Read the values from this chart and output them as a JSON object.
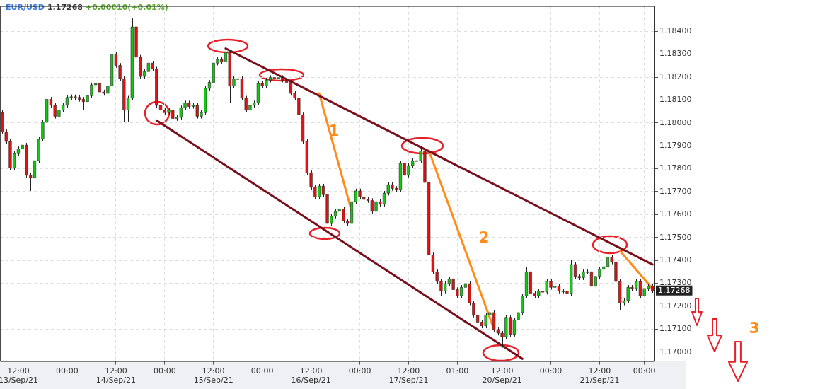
{
  "chart_data": {
    "type": "candlestick",
    "title": "EUR/USD",
    "subtitle": "1.17268",
    "annotations": [
      "+0.00010(+0.01%)",
      "1",
      "2",
      "3",
      "1.17268"
    ],
    "categories": [
      null,
      null,
      null,
      null,
      "12:00\n13/Sep/21",
      null,
      null,
      null,
      null,
      null,
      null,
      null,
      null,
      null,
      null,
      null,
      "00:00",
      null,
      null,
      null,
      null,
      null,
      null,
      null,
      null,
      null,
      null,
      null,
      "12:00\n14/Sep/21",
      null,
      null,
      null,
      null,
      null,
      null,
      null,
      null,
      null,
      null,
      null,
      "00:00",
      null,
      null,
      null,
      null,
      null,
      null,
      null,
      null,
      null,
      null,
      null,
      "12:00\n15/Sep/21",
      null,
      null,
      null,
      null,
      null,
      null,
      null,
      null,
      null,
      null,
      null,
      "00:00",
      null,
      null,
      null,
      null,
      null,
      null,
      null,
      null,
      null,
      null,
      null,
      "12:00\n16/Sep/21",
      null,
      null,
      null,
      null,
      null,
      null,
      null,
      null,
      null,
      null,
      null,
      "00:00",
      null,
      null,
      null,
      null,
      null,
      null,
      null,
      null,
      null,
      null,
      null,
      "12:00\n17/Sep/21",
      null,
      null,
      null,
      null,
      null,
      null,
      null,
      null,
      null,
      null,
      null,
      "01:00",
      null,
      null,
      null,
      null,
      null,
      null,
      null,
      null,
      null,
      null,
      "12:00\n20/Sep/21",
      null,
      null,
      null,
      null,
      null,
      null,
      null,
      null,
      null,
      null,
      null,
      "00:00",
      null,
      null,
      null,
      null,
      null,
      null,
      null,
      null,
      null,
      null,
      null,
      "12:00\n21/Sep/21",
      null,
      null,
      null,
      null,
      null,
      null,
      null,
      null,
      null,
      null,
      "00:00",
      null,
      null
    ],
    "ohlc": [
      [
        1.18045,
        1.18055,
        1.17951,
        1.17961
      ],
      [
        1.17961,
        1.17971,
        1.17909,
        1.17919
      ],
      [
        1.17919,
        1.17929,
        1.17793,
        1.17803
      ],
      [
        1.17803,
        1.17876,
        1.17793,
        1.17866
      ],
      [
        1.17866,
        1.17897,
        1.17856,
        1.17887
      ],
      [
        1.17887,
        1.17913,
        1.17877,
        1.17903
      ],
      [
        1.17903,
        1.17913,
        1.17762,
        1.17772
      ],
      [
        1.17772,
        1.17782,
        1.17703,
        1.17761
      ],
      [
        1.17761,
        1.17845,
        1.17751,
        1.17835
      ],
      [
        1.17835,
        1.17939,
        1.17825,
        1.17929
      ],
      [
        1.17929,
        1.18013,
        1.17919,
        1.18003
      ],
      [
        1.18003,
        1.18172,
        1.17993,
        1.18103
      ],
      [
        1.18103,
        1.18113,
        1.18067,
        1.18077
      ],
      [
        1.18077,
        1.18087,
        1.18019,
        1.18029
      ],
      [
        1.18029,
        1.18066,
        1.18019,
        1.18056
      ],
      [
        1.18056,
        1.18087,
        1.18046,
        1.18077
      ],
      [
        1.18077,
        1.18121,
        1.18067,
        1.18111
      ],
      [
        1.18111,
        1.18124,
        1.18101,
        1.18114
      ],
      [
        1.18114,
        1.18124,
        1.18101,
        1.18111
      ],
      [
        1.18111,
        1.18121,
        1.18093,
        1.18103
      ],
      [
        1.18103,
        1.18113,
        1.18056,
        1.18093
      ],
      [
        1.18093,
        1.18129,
        1.18083,
        1.18119
      ],
      [
        1.18119,
        1.18176,
        1.18109,
        1.18166
      ],
      [
        1.18166,
        1.18182,
        1.18156,
        1.18172
      ],
      [
        1.18172,
        1.18182,
        1.18125,
        1.18135
      ],
      [
        1.18135,
        1.18145,
        1.18119,
        1.18129
      ],
      [
        1.18129,
        1.18171,
        1.18072,
        1.18161
      ],
      [
        1.18161,
        1.18308,
        1.18151,
        1.18298
      ],
      [
        1.18298,
        1.18308,
        1.18241,
        1.18251
      ],
      [
        1.18251,
        1.18261,
        1.18183,
        1.18193
      ],
      [
        1.18193,
        1.18203,
        1.18003,
        1.18056
      ],
      [
        1.18056,
        1.18118,
        1.18003,
        1.18108
      ],
      [
        1.18108,
        1.18456,
        1.18098,
        1.18419
      ],
      [
        1.18419,
        1.18429,
        1.18277,
        1.18287
      ],
      [
        1.18287,
        1.18297,
        1.18193,
        1.18203
      ],
      [
        1.18203,
        1.18234,
        1.18193,
        1.18224
      ],
      [
        1.18224,
        1.18271,
        1.18214,
        1.18261
      ],
      [
        1.18261,
        1.18271,
        1.18225,
        1.18235
      ],
      [
        1.18235,
        1.18245,
        1.18067,
        1.18077
      ],
      [
        1.18077,
        1.18087,
        1.18046,
        1.18056
      ],
      [
        1.18056,
        1.18066,
        1.18035,
        1.18045
      ],
      [
        1.18045,
        1.18066,
        1.18035,
        1.18056
      ],
      [
        1.18056,
        1.18066,
        1.18009,
        1.18019
      ],
      [
        1.18019,
        1.18034,
        1.18009,
        1.18024
      ],
      [
        1.18024,
        1.18076,
        1.18014,
        1.18066
      ],
      [
        1.18066,
        1.18097,
        1.18056,
        1.18087
      ],
      [
        1.18087,
        1.18097,
        1.18062,
        1.18072
      ],
      [
        1.18072,
        1.18087,
        1.18062,
        1.18077
      ],
      [
        1.18077,
        1.18087,
        1.18019,
        1.18029
      ],
      [
        1.18029,
        1.18055,
        1.18019,
        1.18045
      ],
      [
        1.18045,
        1.18161,
        1.18035,
        1.18151
      ],
      [
        1.18151,
        1.18187,
        1.18141,
        1.18177
      ],
      [
        1.18177,
        1.18271,
        1.18167,
        1.18261
      ],
      [
        1.18261,
        1.18287,
        1.18251,
        1.18277
      ],
      [
        1.18277,
        1.18287,
        1.18256,
        1.18266
      ],
      [
        1.18266,
        1.18324,
        1.18256,
        1.18308
      ],
      [
        1.18308,
        1.18318,
        1.18087,
        1.18161
      ],
      [
        1.18161,
        1.18203,
        1.18151,
        1.18193
      ],
      [
        1.18193,
        1.18203,
        1.18183,
        1.18193
      ],
      [
        1.18193,
        1.18203,
        1.18098,
        1.18108
      ],
      [
        1.18108,
        1.18118,
        1.18046,
        1.18056
      ],
      [
        1.18056,
        1.18087,
        1.18046,
        1.18077
      ],
      [
        1.18077,
        1.18097,
        1.18067,
        1.18087
      ],
      [
        1.18087,
        1.18182,
        1.18077,
        1.18172
      ],
      [
        1.18172,
        1.18182,
        1.18151,
        1.18161
      ],
      [
        1.18161,
        1.18197,
        1.18151,
        1.18187
      ],
      [
        1.18187,
        1.18208,
        1.18177,
        1.18198
      ],
      [
        1.18198,
        1.18208,
        1.18183,
        1.18193
      ],
      [
        1.18193,
        1.18208,
        1.18183,
        1.18198
      ],
      [
        1.18198,
        1.18208,
        1.18177,
        1.18187
      ],
      [
        1.18187,
        1.18197,
        1.18167,
        1.18177
      ],
      [
        1.18177,
        1.18187,
        1.18119,
        1.18129
      ],
      [
        1.18129,
        1.18139,
        1.18098,
        1.18108
      ],
      [
        1.18108,
        1.18118,
        1.18025,
        1.18035
      ],
      [
        1.18035,
        1.18045,
        1.17909,
        1.17919
      ],
      [
        1.17919,
        1.17929,
        1.17772,
        1.17782
      ],
      [
        1.17782,
        1.17792,
        1.17709,
        1.17719
      ],
      [
        1.17719,
        1.17729,
        1.17667,
        1.17677
      ],
      [
        1.17677,
        1.17734,
        1.17667,
        1.17724
      ],
      [
        1.17724,
        1.17734,
        1.17677,
        1.17687
      ],
      [
        1.17687,
        1.17697,
        1.17519,
        1.17561
      ],
      [
        1.17561,
        1.17603,
        1.17551,
        1.17593
      ],
      [
        1.17593,
        1.17624,
        1.17583,
        1.17614
      ],
      [
        1.17614,
        1.17634,
        1.17604,
        1.17624
      ],
      [
        1.17624,
        1.17634,
        1.17562,
        1.17572
      ],
      [
        1.17572,
        1.17582,
        1.17551,
        1.17561
      ],
      [
        1.17561,
        1.17666,
        1.17551,
        1.17656
      ],
      [
        1.17656,
        1.17713,
        1.17646,
        1.17703
      ],
      [
        1.17703,
        1.17713,
        1.17667,
        1.17677
      ],
      [
        1.17677,
        1.17687,
        1.17656,
        1.17666
      ],
      [
        1.17666,
        1.17676,
        1.17651,
        1.17661
      ],
      [
        1.17661,
        1.17671,
        1.17604,
        1.17614
      ],
      [
        1.17614,
        1.17666,
        1.17604,
        1.17656
      ],
      [
        1.17656,
        1.17666,
        1.17635,
        1.17645
      ],
      [
        1.17645,
        1.17703,
        1.17635,
        1.17693
      ],
      [
        1.17693,
        1.1774,
        1.17683,
        1.1773
      ],
      [
        1.1773,
        1.1774,
        1.17704,
        1.17714
      ],
      [
        1.17714,
        1.17724,
        1.17698,
        1.17708
      ],
      [
        1.17708,
        1.17834,
        1.17698,
        1.17824
      ],
      [
        1.17824,
        1.17834,
        1.17762,
        1.17772
      ],
      [
        1.17772,
        1.17824,
        1.17762,
        1.17814
      ],
      [
        1.17814,
        1.17845,
        1.17804,
        1.17835
      ],
      [
        1.17835,
        1.17845,
        1.17825,
        1.17835
      ],
      [
        1.17835,
        1.17898,
        1.17825,
        1.17877
      ],
      [
        1.17877,
        1.17887,
        1.1773,
        1.1774
      ],
      [
        1.1774,
        1.1775,
        1.17414,
        1.17424
      ],
      [
        1.17424,
        1.17434,
        1.1734,
        1.1735
      ],
      [
        1.1735,
        1.1736,
        1.17298,
        1.17308
      ],
      [
        1.17308,
        1.17318,
        1.17245,
        1.17266
      ],
      [
        1.17266,
        1.17308,
        1.17256,
        1.17298
      ],
      [
        1.17298,
        1.17329,
        1.17288,
        1.17319
      ],
      [
        1.17319,
        1.17329,
        1.17262,
        1.17272
      ],
      [
        1.17272,
        1.17282,
        1.17235,
        1.17245
      ],
      [
        1.17245,
        1.17292,
        1.17235,
        1.17282
      ],
      [
        1.17282,
        1.17308,
        1.17272,
        1.17298
      ],
      [
        1.17298,
        1.17308,
        1.17204,
        1.17214
      ],
      [
        1.17214,
        1.17224,
        1.17151,
        1.17161
      ],
      [
        1.17161,
        1.17171,
        1.1712,
        1.1713
      ],
      [
        1.1713,
        1.1714,
        1.17104,
        1.17114
      ],
      [
        1.17114,
        1.17171,
        1.17104,
        1.17161
      ],
      [
        1.17161,
        1.17182,
        1.17151,
        1.17172
      ],
      [
        1.17172,
        1.17182,
        1.17088,
        1.17098
      ],
      [
        1.17098,
        1.17108,
        1.17072,
        1.17082
      ],
      [
        1.17082,
        1.17092,
        1.17019,
        1.17066
      ],
      [
        1.17066,
        1.17161,
        1.17056,
        1.17151
      ],
      [
        1.17151,
        1.17161,
        1.17067,
        1.17077
      ],
      [
        1.17077,
        1.1715,
        1.17067,
        1.1714
      ],
      [
        1.1714,
        1.17182,
        1.1713,
        1.17172
      ],
      [
        1.17172,
        1.17255,
        1.17162,
        1.17245
      ],
      [
        1.17245,
        1.17372,
        1.17235,
        1.1735
      ],
      [
        1.1735,
        1.1736,
        1.17246,
        1.17256
      ],
      [
        1.17256,
        1.17266,
        1.17235,
        1.17245
      ],
      [
        1.17245,
        1.17276,
        1.17235,
        1.17266
      ],
      [
        1.17266,
        1.17276,
        1.17251,
        1.17261
      ],
      [
        1.17261,
        1.17318,
        1.17251,
        1.17308
      ],
      [
        1.17308,
        1.17318,
        1.17272,
        1.17282
      ],
      [
        1.17282,
        1.17297,
        1.17272,
        1.17287
      ],
      [
        1.17287,
        1.17297,
        1.17256,
        1.17266
      ],
      [
        1.17266,
        1.17276,
        1.17256,
        1.17266
      ],
      [
        1.17266,
        1.17276,
        1.17246,
        1.17256
      ],
      [
        1.17256,
        1.17403,
        1.17246,
        1.17382
      ],
      [
        1.17382,
        1.17392,
        1.1732,
        1.1733
      ],
      [
        1.1733,
        1.1734,
        1.17314,
        1.17324
      ],
      [
        1.17324,
        1.1736,
        1.17314,
        1.1735
      ],
      [
        1.1735,
        1.1736,
        1.1734,
        1.1735
      ],
      [
        1.1735,
        1.1736,
        1.17193,
        1.17287
      ],
      [
        1.17287,
        1.1734,
        1.17277,
        1.1733
      ],
      [
        1.1733,
        1.17371,
        1.1732,
        1.17361
      ],
      [
        1.17361,
        1.17382,
        1.17351,
        1.17372
      ],
      [
        1.17372,
        1.17472,
        1.17362,
        1.17414
      ],
      [
        1.17414,
        1.17424,
        1.17383,
        1.17393
      ],
      [
        1.17393,
        1.17403,
        1.17298,
        1.17308
      ],
      [
        1.17308,
        1.17318,
        1.17182,
        1.17214
      ],
      [
        1.17214,
        1.17234,
        1.17204,
        1.17224
      ],
      [
        1.17224,
        1.17292,
        1.17214,
        1.17282
      ],
      [
        1.17282,
        1.17292,
        1.17267,
        1.17277
      ],
      [
        1.17277,
        1.17318,
        1.17267,
        1.17308
      ],
      [
        1.17308,
        1.17318,
        1.17235,
        1.17245
      ],
      [
        1.17245,
        1.17287,
        1.17235,
        1.17277
      ],
      [
        1.17277,
        1.17297,
        1.17267,
        1.17287
      ],
      [
        1.17287,
        1.17297,
        1.17258,
        1.17268
      ]
    ],
    "series": [
      {
        "type": "line",
        "color": "#7a0f1c",
        "values": [
          null,
          null,
          null,
          null,
          null,
          null,
          null,
          null,
          null,
          null,
          null,
          null,
          null,
          null,
          null,
          null,
          null,
          null,
          null,
          null,
          null,
          null,
          null,
          null,
          null,
          null,
          null,
          null,
          null,
          null,
          null,
          null,
          null,
          null,
          null,
          null,
          null,
          null,
          null,
          null,
          null,
          null,
          null,
          null,
          null,
          null,
          null,
          null,
          null,
          null,
          null,
          null,
          null,
          null,
          null,
          1.18325,
          null,
          null,
          null,
          null,
          null,
          null,
          null,
          null,
          null,
          null,
          null,
          null,
          null,
          null,
          null,
          null,
          null,
          null,
          null,
          null,
          null,
          null,
          null,
          null,
          null,
          null,
          null,
          null,
          null,
          null,
          null,
          null,
          null,
          null,
          null,
          null,
          null,
          null,
          null,
          null,
          null,
          null,
          null,
          null,
          null,
          null,
          null,
          null,
          null,
          null,
          null,
          null,
          null,
          null,
          null,
          null,
          null,
          null,
          null,
          null,
          null,
          null,
          null,
          null,
          null,
          null,
          null,
          null,
          null,
          null,
          null,
          null,
          null,
          null,
          null,
          null,
          null,
          null,
          null,
          null,
          null,
          null,
          null,
          null,
          null,
          null,
          null,
          null,
          null,
          null,
          null,
          null,
          null,
          null,
          null,
          null,
          null,
          null,
          null,
          null,
          null,
          null,
          null,
          null,
          1.17382
        ]
      },
      {
        "type": "line",
        "color": "#7a0f1c",
        "values": [
          null,
          null,
          null,
          null,
          null,
          null,
          null,
          null,
          null,
          null,
          null,
          null,
          null,
          null,
          null,
          null,
          null,
          null,
          null,
          null,
          null,
          null,
          null,
          null,
          null,
          null,
          null,
          null,
          null,
          null,
          null,
          null,
          null,
          null,
          null,
          null,
          null,
          null,
          1.18011,
          null,
          null,
          null,
          null,
          null,
          null,
          null,
          null,
          null,
          null,
          null,
          null,
          null,
          null,
          null,
          null,
          null,
          null,
          null,
          null,
          null,
          null,
          null,
          null,
          null,
          null,
          null,
          null,
          null,
          null,
          null,
          null,
          null,
          null,
          null,
          null,
          null,
          null,
          null,
          null,
          null,
          null,
          null,
          null,
          null,
          null,
          null,
          null,
          null,
          null,
          null,
          null,
          null,
          null,
          null,
          null,
          null,
          null,
          null,
          null,
          null,
          null,
          null,
          null,
          null,
          null,
          null,
          null,
          null,
          null,
          null,
          null,
          null,
          null,
          null,
          null,
          null,
          null,
          null,
          null,
          null,
          null,
          null,
          null,
          null,
          null,
          null,
          null,
          null,
          1.1697,
          null,
          null,
          null,
          null,
          null,
          null,
          null,
          null,
          null,
          null,
          null,
          null,
          null,
          null,
          null,
          null,
          null,
          null,
          null,
          null,
          null,
          null,
          null,
          null,
          null,
          null,
          null,
          null,
          null,
          null,
          null,
          null
        ]
      },
      {
        "type": "line",
        "color": "#ff8c1a",
        "values": [
          null,
          null,
          null,
          null,
          null,
          null,
          null,
          null,
          null,
          null,
          null,
          null,
          null,
          null,
          null,
          null,
          null,
          null,
          null,
          null,
          null,
          null,
          null,
          null,
          null,
          null,
          null,
          null,
          null,
          null,
          null,
          null,
          null,
          null,
          null,
          null,
          null,
          null,
          null,
          null,
          null,
          null,
          null,
          null,
          null,
          null,
          null,
          null,
          null,
          null,
          null,
          null,
          null,
          null,
          null,
          null,
          null,
          null,
          null,
          null,
          null,
          null,
          null,
          null,
          null,
          null,
          null,
          null,
          null,
          null,
          null,
          null,
          null,
          null,
          null,
          null,
          null,
          null,
          1.18129,
          null,
          null,
          null,
          null,
          null,
          null,
          null,
          1.17614,
          null,
          null,
          null,
          null,
          null,
          null,
          null,
          null,
          null,
          null,
          null,
          null,
          null,
          null,
          null,
          null,
          null,
          null,
          null,
          null,
          null,
          null,
          null,
          null,
          null,
          null,
          null,
          null,
          null,
          null,
          null,
          null,
          null,
          null,
          null,
          null,
          null,
          null,
          null,
          null,
          null,
          null,
          null,
          null,
          null,
          null,
          null,
          null,
          null,
          null,
          null,
          null,
          null,
          null,
          null,
          null,
          null,
          null,
          null,
          null,
          null,
          null,
          null,
          null,
          null,
          null,
          null,
          null,
          null,
          null,
          null,
          null,
          null,
          null
        ]
      },
      {
        "type": "line",
        "color": "#ff8c1a",
        "values": [
          null,
          null,
          null,
          null,
          null,
          null,
          null,
          null,
          null,
          null,
          null,
          null,
          null,
          null,
          null,
          null,
          null,
          null,
          null,
          null,
          null,
          null,
          null,
          null,
          null,
          null,
          null,
          null,
          null,
          null,
          null,
          null,
          null,
          null,
          null,
          null,
          null,
          null,
          null,
          null,
          null,
          null,
          null,
          null,
          null,
          null,
          null,
          null,
          null,
          null,
          null,
          null,
          null,
          null,
          null,
          null,
          null,
          null,
          null,
          null,
          null,
          null,
          null,
          null,
          null,
          null,
          null,
          null,
          null,
          null,
          null,
          null,
          null,
          null,
          null,
          null,
          null,
          null,
          null,
          null,
          null,
          null,
          null,
          null,
          null,
          null,
          null,
          null,
          null,
          null,
          null,
          null,
          null,
          null,
          null,
          null,
          null,
          null,
          null,
          null,
          null,
          null,
          null,
          null,
          null,
          1.17879,
          null,
          null,
          null,
          null,
          null,
          null,
          null,
          null,
          null,
          null,
          null,
          null,
          null,
          null,
          null,
          1.171,
          null,
          null,
          null,
          null,
          null,
          null,
          null,
          null,
          null,
          null,
          null,
          null,
          null,
          null,
          null,
          null,
          null,
          null,
          null,
          null,
          null,
          null,
          null,
          null,
          null,
          null,
          null,
          null,
          null,
          null,
          null,
          null,
          null,
          null,
          null,
          null,
          null,
          null,
          null
        ]
      },
      {
        "type": "line",
        "color": "#ff8c1a",
        "values": [
          null,
          null,
          null,
          null,
          null,
          null,
          null,
          null,
          null,
          null,
          null,
          null,
          null,
          null,
          null,
          null,
          null,
          null,
          null,
          null,
          null,
          null,
          null,
          null,
          null,
          null,
          null,
          null,
          null,
          null,
          null,
          null,
          null,
          null,
          null,
          null,
          null,
          null,
          null,
          null,
          null,
          null,
          null,
          null,
          null,
          null,
          null,
          null,
          null,
          null,
          null,
          null,
          null,
          null,
          null,
          null,
          null,
          null,
          null,
          null,
          null,
          null,
          null,
          null,
          null,
          null,
          null,
          null,
          null,
          null,
          null,
          null,
          null,
          null,
          null,
          null,
          null,
          null,
          null,
          null,
          null,
          null,
          null,
          null,
          null,
          null,
          null,
          null,
          null,
          null,
          null,
          null,
          null,
          null,
          null,
          null,
          null,
          null,
          null,
          null,
          null,
          null,
          null,
          null,
          null,
          null,
          null,
          null,
          null,
          null,
          null,
          null,
          null,
          null,
          null,
          null,
          null,
          null,
          null,
          null,
          null,
          null,
          null,
          null,
          null,
          null,
          null,
          null,
          null,
          null,
          null,
          null,
          null,
          null,
          null,
          null,
          null,
          null,
          null,
          null,
          null,
          null,
          null,
          null,
          null,
          null,
          null,
          null,
          null,
          null,
          null,
          null,
          1.17442,
          null,
          null,
          null,
          null,
          null,
          null,
          null,
          1.17277
        ]
      }
    ],
    "ylim": [
      1.1696,
      1.1851
    ],
    "yticks": [
      {
        "value": 1.17,
        "label": "1.17000"
      },
      {
        "value": 1.171,
        "label": "1.17100"
      },
      {
        "value": 1.172,
        "label": "1.17200"
      },
      {
        "value": 1.173,
        "label": "1.17300"
      },
      {
        "value": 1.174,
        "label": "1.17400"
      },
      {
        "value": 1.175,
        "label": "1.17500"
      },
      {
        "value": 1.176,
        "label": "1.17600"
      },
      {
        "value": 1.177,
        "label": "1.17700"
      },
      {
        "value": 1.178,
        "label": "1.17800"
      },
      {
        "value": 1.179,
        "label": "1.17900"
      },
      {
        "value": 1.18,
        "label": "1.18000"
      },
      {
        "value": 1.181,
        "label": "1.18100"
      },
      {
        "value": 1.182,
        "label": "1.18200"
      },
      {
        "value": 1.183,
        "label": "1.18300"
      },
      {
        "value": 1.184,
        "label": "1.18400"
      }
    ],
    "grid": true
  }
}
